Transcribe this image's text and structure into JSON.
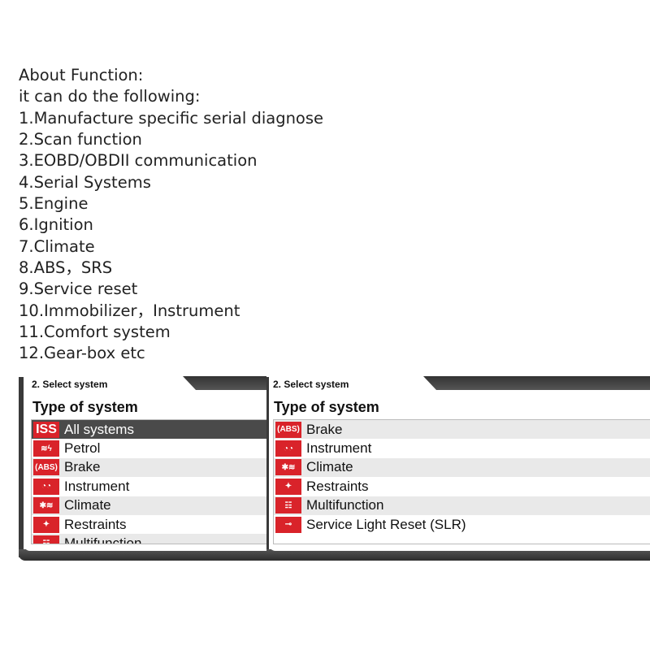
{
  "description": {
    "lines": [
      "About Function:",
      "it can do the following:",
      "1.Manufacture specific serial diagnose",
      "2.Scan function",
      "3.EOBD/OBDII communication",
      "4.Serial Systems",
      "5.Engine",
      "6.Ignition",
      "7.Climate",
      "8.ABS，SRS",
      "9.Service reset",
      "10.Immobilizer，Instrument",
      "11.Comfort system",
      "12.Gear-box etc"
    ]
  },
  "left_panel": {
    "header": "2. Select system",
    "title": "Type of system",
    "items": [
      {
        "icon": "iss-icon",
        "icon_text": "ISS",
        "label": "All systems",
        "selected": true
      },
      {
        "icon": "petrol-icon",
        "icon_text": "≋ϟ",
        "label": "Petrol"
      },
      {
        "icon": "abs-icon",
        "icon_text": "(ABS)",
        "label": "Brake"
      },
      {
        "icon": "instrument-icon",
        "icon_text": "◔◔",
        "label": "Instrument"
      },
      {
        "icon": "climate-icon",
        "icon_text": "✱≋",
        "label": "Climate"
      },
      {
        "icon": "airbag-icon",
        "icon_text": "✦",
        "label": "Restraints"
      },
      {
        "icon": "multifunction-icon",
        "icon_text": "☷",
        "label": "Multifunction"
      }
    ]
  },
  "right_panel": {
    "header": "2. Select system",
    "title": "Type of system",
    "items": [
      {
        "icon": "abs-icon",
        "icon_text": "(ABS)",
        "label": "Brake"
      },
      {
        "icon": "instrument-icon",
        "icon_text": "◔◔",
        "label": "Instrument"
      },
      {
        "icon": "climate-icon",
        "icon_text": "✱≋",
        "label": "Climate"
      },
      {
        "icon": "airbag-icon",
        "icon_text": "✦",
        "label": "Restraints"
      },
      {
        "icon": "multifunction-icon",
        "icon_text": "☷",
        "label": "Multifunction"
      },
      {
        "icon": "wrench-icon",
        "icon_text": "⊸",
        "label": "Service Light Reset (SLR)"
      }
    ]
  },
  "colors": {
    "icon_red": "#d9232a",
    "selected_row": "#4a4a4a",
    "frame": "#3a3a3a"
  }
}
